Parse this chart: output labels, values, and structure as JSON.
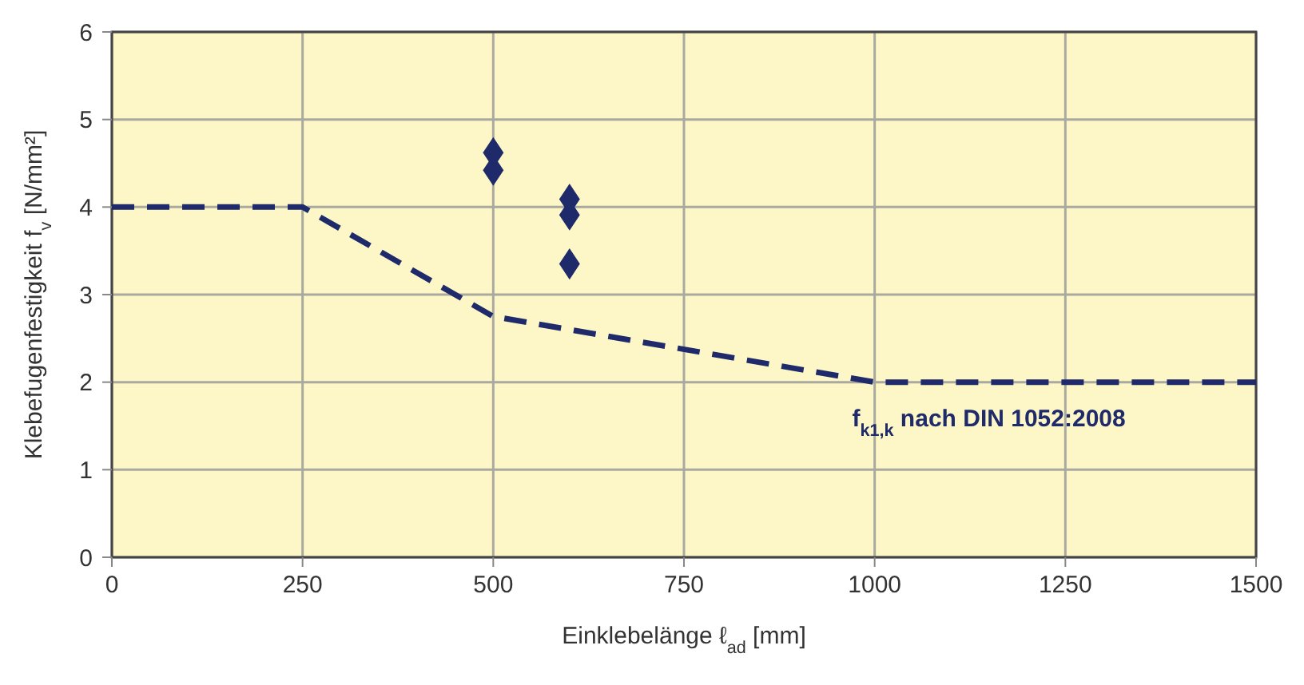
{
  "chart_data": {
    "type": "scatter",
    "xlabel": "Einklebelänge ℓ$_{ad}$ [mm]",
    "ylabel": "Klebefugenfestigkeit f$_{v}$ [N/mm²]",
    "xlim": [
      0,
      1500
    ],
    "ylim": [
      0,
      6
    ],
    "xticks": [
      0,
      250,
      500,
      750,
      1000,
      1250,
      1500
    ],
    "yticks": [
      0,
      1,
      2,
      3,
      4,
      5,
      6
    ],
    "grid": true,
    "series": [
      {
        "type": "line",
        "color": "#1f2a6b",
        "line_style": "dashed",
        "marker": "none",
        "x": [
          0,
          250,
          500,
          1000,
          1500
        ],
        "values": [
          4,
          4,
          2.75,
          2,
          2
        ]
      },
      {
        "color": "#1f2a6b",
        "marker": "diamond",
        "x": [
          500,
          500,
          600,
          600,
          600
        ],
        "values": [
          4.62,
          4.42,
          4.09,
          3.91,
          3.35
        ]
      }
    ],
    "annotations": [
      "f$_{k1,k}$ nach DIN 1052:2008"
    ]
  }
}
